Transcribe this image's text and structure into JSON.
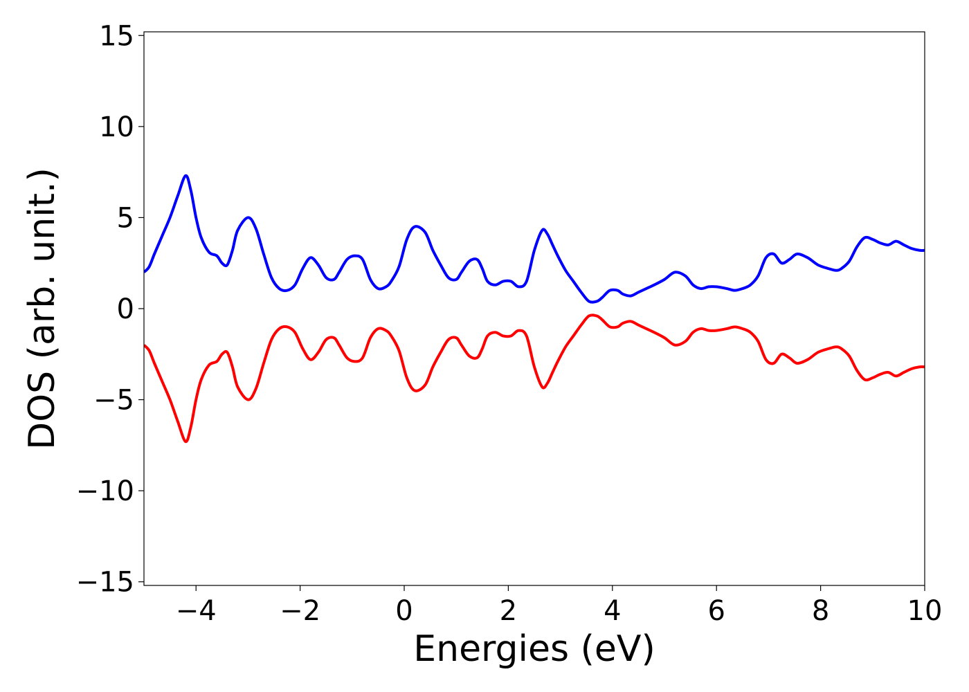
{
  "chart_data": {
    "type": "line",
    "title": "",
    "xlabel": "Energies (eV)",
    "ylabel": "DOS (arb. unit.)",
    "xlim": [
      -5,
      10
    ],
    "ylim": [
      -15.2,
      15.2
    ],
    "grid": false,
    "legend": "none",
    "xticks": [
      -4,
      -2,
      0,
      2,
      4,
      6,
      8,
      10
    ],
    "xtick_labels": [
      "−4",
      "−2",
      "0",
      "2",
      "4",
      "6",
      "8",
      "10"
    ],
    "yticks": [
      -15,
      -10,
      -5,
      0,
      5,
      10,
      15
    ],
    "ytick_labels": [
      "−15",
      "−10",
      "−5",
      "0",
      "5",
      "10",
      "15"
    ],
    "series": [
      {
        "color": "#0000ff",
        "x": [
          -5.0,
          -4.9,
          -4.8,
          -4.65,
          -4.5,
          -4.35,
          -4.2,
          -4.1,
          -4.0,
          -3.9,
          -3.75,
          -3.6,
          -3.5,
          -3.4,
          -3.3,
          -3.2,
          -3.0,
          -2.85,
          -2.7,
          -2.55,
          -2.4,
          -2.25,
          -2.1,
          -1.95,
          -1.8,
          -1.65,
          -1.5,
          -1.35,
          -1.25,
          -1.1,
          -0.95,
          -0.8,
          -0.65,
          -0.5,
          -0.35,
          -0.25,
          -0.1,
          0.05,
          0.2,
          0.4,
          0.55,
          0.7,
          0.85,
          1.0,
          1.1,
          1.25,
          1.4,
          1.5,
          1.6,
          1.75,
          1.9,
          2.05,
          2.2,
          2.35,
          2.5,
          2.65,
          2.75,
          2.85,
          2.95,
          3.1,
          3.25,
          3.4,
          3.55,
          3.7,
          3.8,
          3.95,
          4.1,
          4.2,
          4.35,
          4.5,
          4.65,
          4.8,
          5.0,
          5.2,
          5.4,
          5.55,
          5.7,
          5.85,
          6.0,
          6.2,
          6.35,
          6.5,
          6.65,
          6.8,
          6.95,
          7.1,
          7.25,
          7.4,
          7.55,
          7.75,
          7.95,
          8.15,
          8.3,
          8.4,
          8.55,
          8.7,
          8.85,
          9.0,
          9.15,
          9.3,
          9.45,
          9.6,
          9.75,
          9.9,
          10.0
        ],
        "y": [
          2.0,
          2.3,
          3.0,
          4.0,
          5.0,
          6.2,
          7.3,
          6.5,
          5.0,
          3.9,
          3.1,
          2.9,
          2.5,
          2.4,
          3.2,
          4.3,
          5.0,
          4.4,
          3.0,
          1.7,
          1.1,
          1.0,
          1.3,
          2.2,
          2.8,
          2.4,
          1.7,
          1.6,
          2.0,
          2.7,
          2.9,
          2.7,
          1.6,
          1.1,
          1.2,
          1.5,
          2.3,
          3.8,
          4.5,
          4.2,
          3.2,
          2.4,
          1.7,
          1.6,
          2.0,
          2.6,
          2.7,
          2.2,
          1.5,
          1.3,
          1.5,
          1.5,
          1.2,
          1.5,
          3.2,
          4.3,
          4.1,
          3.5,
          2.9,
          2.1,
          1.5,
          0.9,
          0.4,
          0.4,
          0.6,
          1.0,
          1.0,
          0.8,
          0.7,
          0.9,
          1.1,
          1.3,
          1.6,
          2.0,
          1.8,
          1.3,
          1.1,
          1.2,
          1.2,
          1.1,
          1.0,
          1.1,
          1.3,
          1.8,
          2.8,
          3.0,
          2.5,
          2.7,
          3.0,
          2.8,
          2.4,
          2.2,
          2.1,
          2.2,
          2.6,
          3.4,
          3.9,
          3.8,
          3.6,
          3.5,
          3.7,
          3.5,
          3.3,
          3.2,
          3.2
        ]
      },
      {
        "color": "#ff0000",
        "x": [
          -5.0,
          -4.9,
          -4.8,
          -4.65,
          -4.5,
          -4.35,
          -4.2,
          -4.1,
          -4.0,
          -3.9,
          -3.75,
          -3.6,
          -3.5,
          -3.4,
          -3.3,
          -3.2,
          -3.0,
          -2.85,
          -2.7,
          -2.55,
          -2.4,
          -2.25,
          -2.1,
          -1.95,
          -1.8,
          -1.65,
          -1.5,
          -1.35,
          -1.25,
          -1.1,
          -0.95,
          -0.8,
          -0.65,
          -0.5,
          -0.35,
          -0.25,
          -0.1,
          0.05,
          0.2,
          0.4,
          0.55,
          0.7,
          0.85,
          1.0,
          1.1,
          1.25,
          1.4,
          1.5,
          1.6,
          1.75,
          1.9,
          2.05,
          2.2,
          2.35,
          2.5,
          2.65,
          2.75,
          2.85,
          2.95,
          3.1,
          3.25,
          3.4,
          3.55,
          3.7,
          3.8,
          3.95,
          4.1,
          4.2,
          4.35,
          4.5,
          4.65,
          4.8,
          5.0,
          5.2,
          5.4,
          5.55,
          5.7,
          5.85,
          6.0,
          6.2,
          6.35,
          6.5,
          6.65,
          6.8,
          6.95,
          7.1,
          7.25,
          7.4,
          7.55,
          7.75,
          7.95,
          8.15,
          8.3,
          8.4,
          8.55,
          8.7,
          8.85,
          9.0,
          9.15,
          9.3,
          9.45,
          9.6,
          9.75,
          9.9,
          10.0
        ],
        "y": [
          -2.0,
          -2.3,
          -3.0,
          -4.0,
          -5.0,
          -6.2,
          -7.3,
          -6.5,
          -5.0,
          -3.9,
          -3.1,
          -2.9,
          -2.5,
          -2.4,
          -3.2,
          -4.3,
          -5.0,
          -4.4,
          -3.0,
          -1.7,
          -1.1,
          -1.0,
          -1.3,
          -2.2,
          -2.8,
          -2.4,
          -1.7,
          -1.6,
          -2.0,
          -2.7,
          -2.9,
          -2.7,
          -1.6,
          -1.1,
          -1.2,
          -1.5,
          -2.3,
          -3.8,
          -4.5,
          -4.2,
          -3.2,
          -2.4,
          -1.7,
          -1.6,
          -2.0,
          -2.6,
          -2.7,
          -2.2,
          -1.5,
          -1.3,
          -1.5,
          -1.5,
          -1.2,
          -1.5,
          -3.2,
          -4.3,
          -4.1,
          -3.5,
          -2.9,
          -2.1,
          -1.5,
          -0.9,
          -0.4,
          -0.4,
          -0.6,
          -1.0,
          -1.0,
          -0.8,
          -0.7,
          -0.9,
          -1.1,
          -1.3,
          -1.6,
          -2.0,
          -1.8,
          -1.3,
          -1.1,
          -1.2,
          -1.2,
          -1.1,
          -1.0,
          -1.1,
          -1.3,
          -1.8,
          -2.8,
          -3.0,
          -2.5,
          -2.7,
          -3.0,
          -2.8,
          -2.4,
          -2.2,
          -2.1,
          -2.2,
          -2.6,
          -3.4,
          -3.9,
          -3.8,
          -3.6,
          -3.5,
          -3.7,
          -3.5,
          -3.3,
          -3.2,
          -3.2
        ]
      }
    ]
  }
}
